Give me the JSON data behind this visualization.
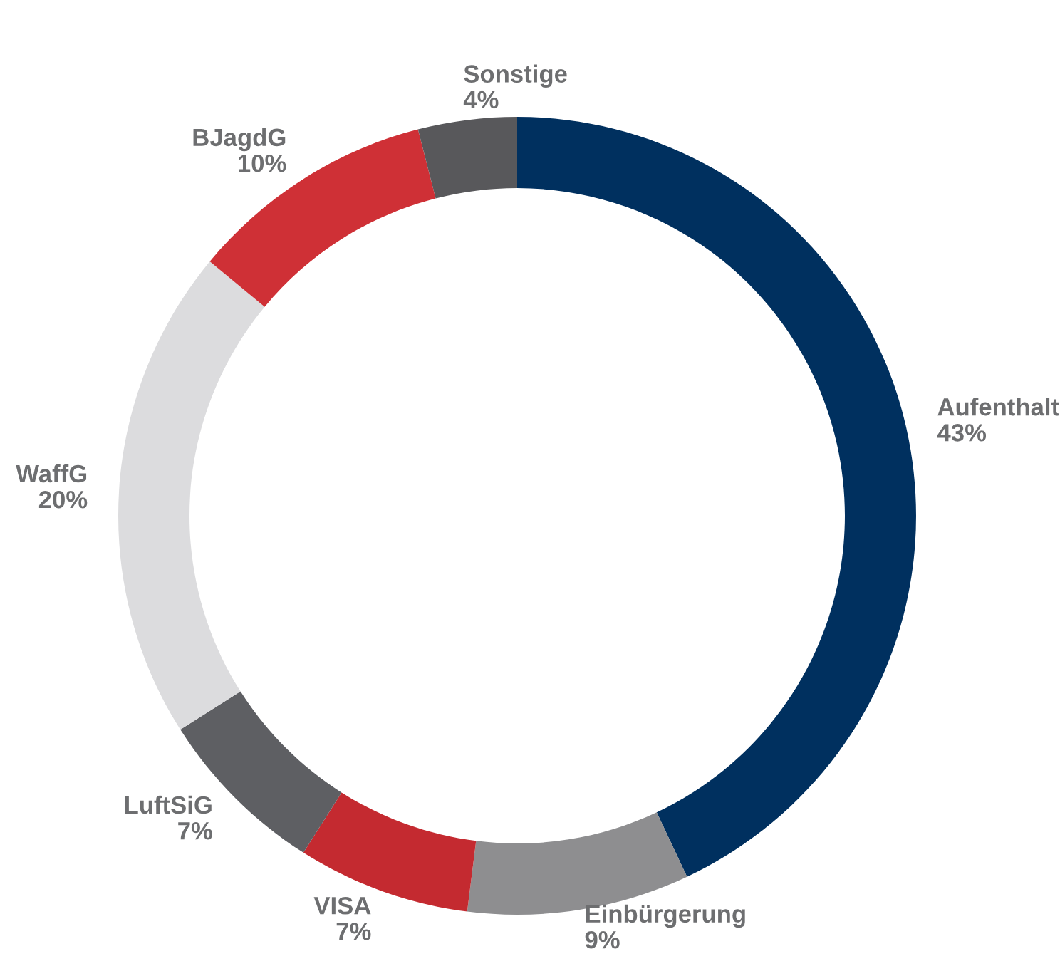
{
  "chart_data": {
    "type": "donut",
    "categories": [
      "Aufenthalt",
      "Einbürgerung",
      "VISA",
      "LuftSiG",
      "WaffG",
      "BJagdG",
      "Sonstige"
    ],
    "values": [
      43,
      9,
      7,
      7,
      20,
      10,
      4
    ],
    "colors": [
      "#00305f",
      "#8e8e90",
      "#c42a30",
      "#5e5f63",
      "#dcdcde",
      "#cf3036",
      "#58585b"
    ],
    "value_labels": [
      "43%",
      "9%",
      "7%",
      "7%",
      "20%",
      "10%",
      "4%"
    ],
    "legend": false
  }
}
